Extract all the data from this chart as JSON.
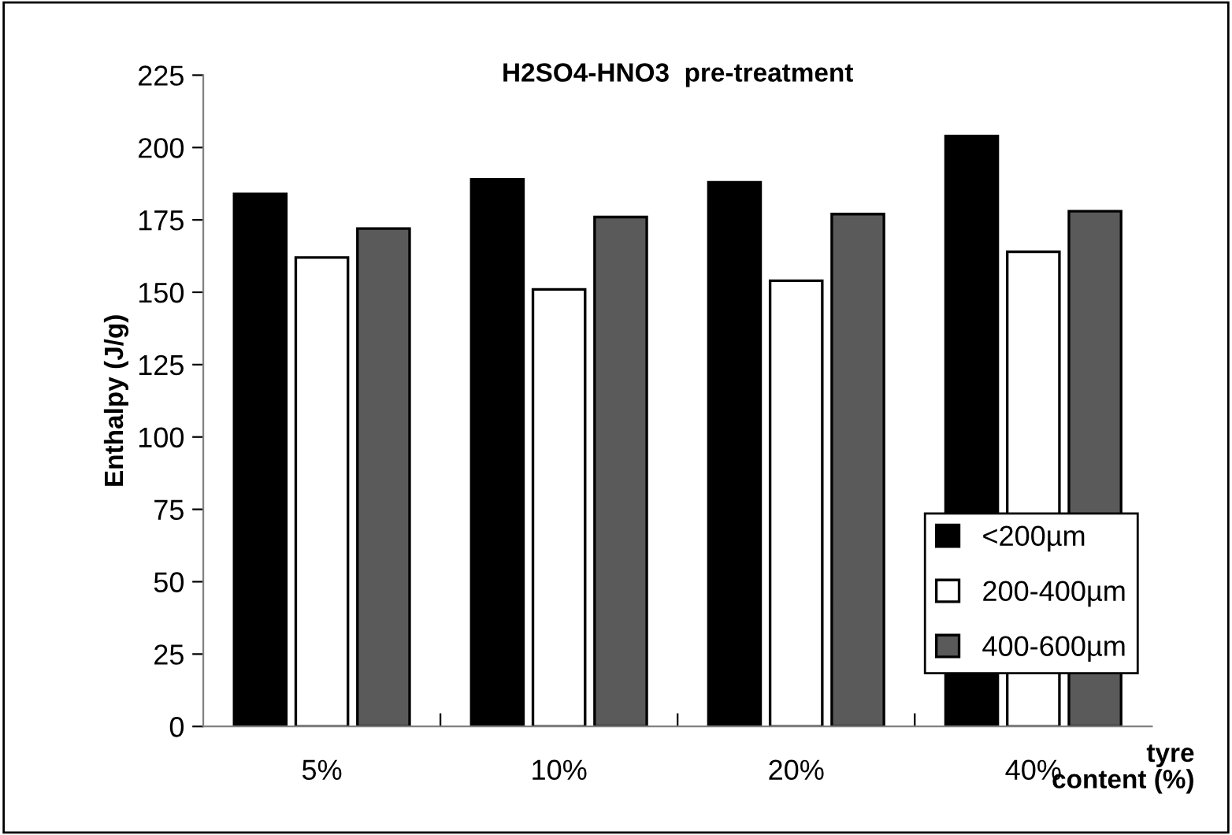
{
  "chart_data": {
    "type": "bar",
    "title": "H2SO4-HNO3  pre-treatment",
    "xlabel": "tyre\ncontent (%)",
    "ylabel": "Enthalpy (J/g)",
    "categories": [
      "5%",
      "10%",
      "20%",
      "40%"
    ],
    "series": [
      {
        "name": "<200µm",
        "color": "#000000",
        "values": [
          184,
          189,
          188,
          204
        ]
      },
      {
        "name": "200-400µm",
        "color": "#ffffff",
        "values": [
          162,
          151,
          154,
          164
        ]
      },
      {
        "name": "400-600µm",
        "color": "#5a5a5a",
        "values": [
          172,
          176,
          177,
          178
        ]
      }
    ],
    "ylim": [
      0,
      225
    ],
    "yticks": [
      0,
      25,
      50,
      75,
      100,
      125,
      150,
      175,
      200,
      225
    ],
    "grid": false,
    "legend": "bottom right"
  }
}
